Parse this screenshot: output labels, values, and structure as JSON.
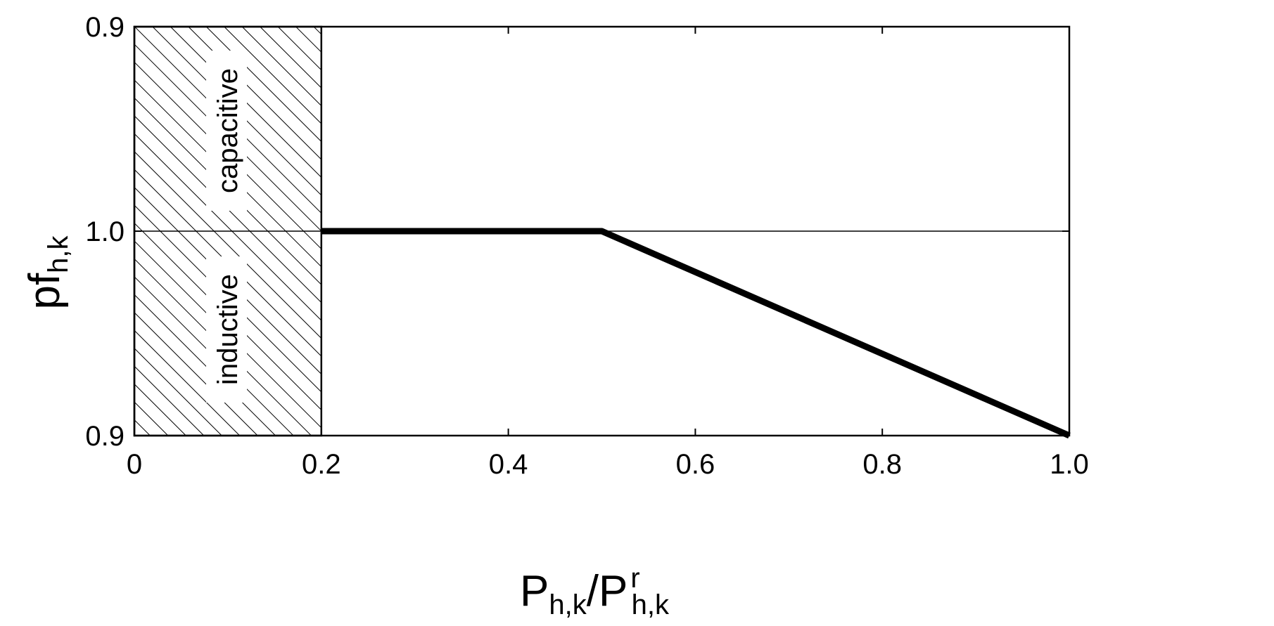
{
  "chart_data": {
    "type": "line",
    "title": "",
    "xlabel": "P_{h,k}/P^{r}_{h,k}",
    "ylabel": "pf_{h,k}",
    "x_tick_labels": [
      "0",
      "0.2",
      "0.4",
      "0.6",
      "0.8",
      "1.0"
    ],
    "x_ticks": [
      0,
      0.2,
      0.4,
      0.6,
      0.8,
      1.0
    ],
    "xlim": [
      0,
      1.0
    ],
    "y_tick_labels": [
      "0.9",
      "1.0",
      "0.9"
    ],
    "y_tick_meaning": [
      "0.9 capacitive",
      "1.0",
      "0.9 inductive"
    ],
    "ylim_note": "power factor axis runs from 0.9 capacitive (top) through 1.0 to 0.9 inductive (bottom)",
    "grid": false,
    "reference_line_y": "1.0",
    "series": [
      {
        "x": [
          0.2,
          0.5,
          1.0
        ],
        "y": [
          "1.0",
          "1.0",
          "0.9 inductive"
        ]
      }
    ],
    "shaded_region": {
      "x_range": [
        0,
        0.2
      ],
      "pattern": "diagonal hatch",
      "labels": [
        "capacitive",
        "inductive"
      ]
    }
  },
  "axis_labels": {
    "x_main": "P",
    "x_sub1": "h,k",
    "x_slash": "/",
    "x_main2": "P",
    "x_sup2": "r",
    "x_sub2": "h,k",
    "y_main": "pf",
    "y_sub": "h,k"
  },
  "colors": {
    "line": "#000000",
    "hatch": "#000000",
    "background": "#ffffff"
  }
}
